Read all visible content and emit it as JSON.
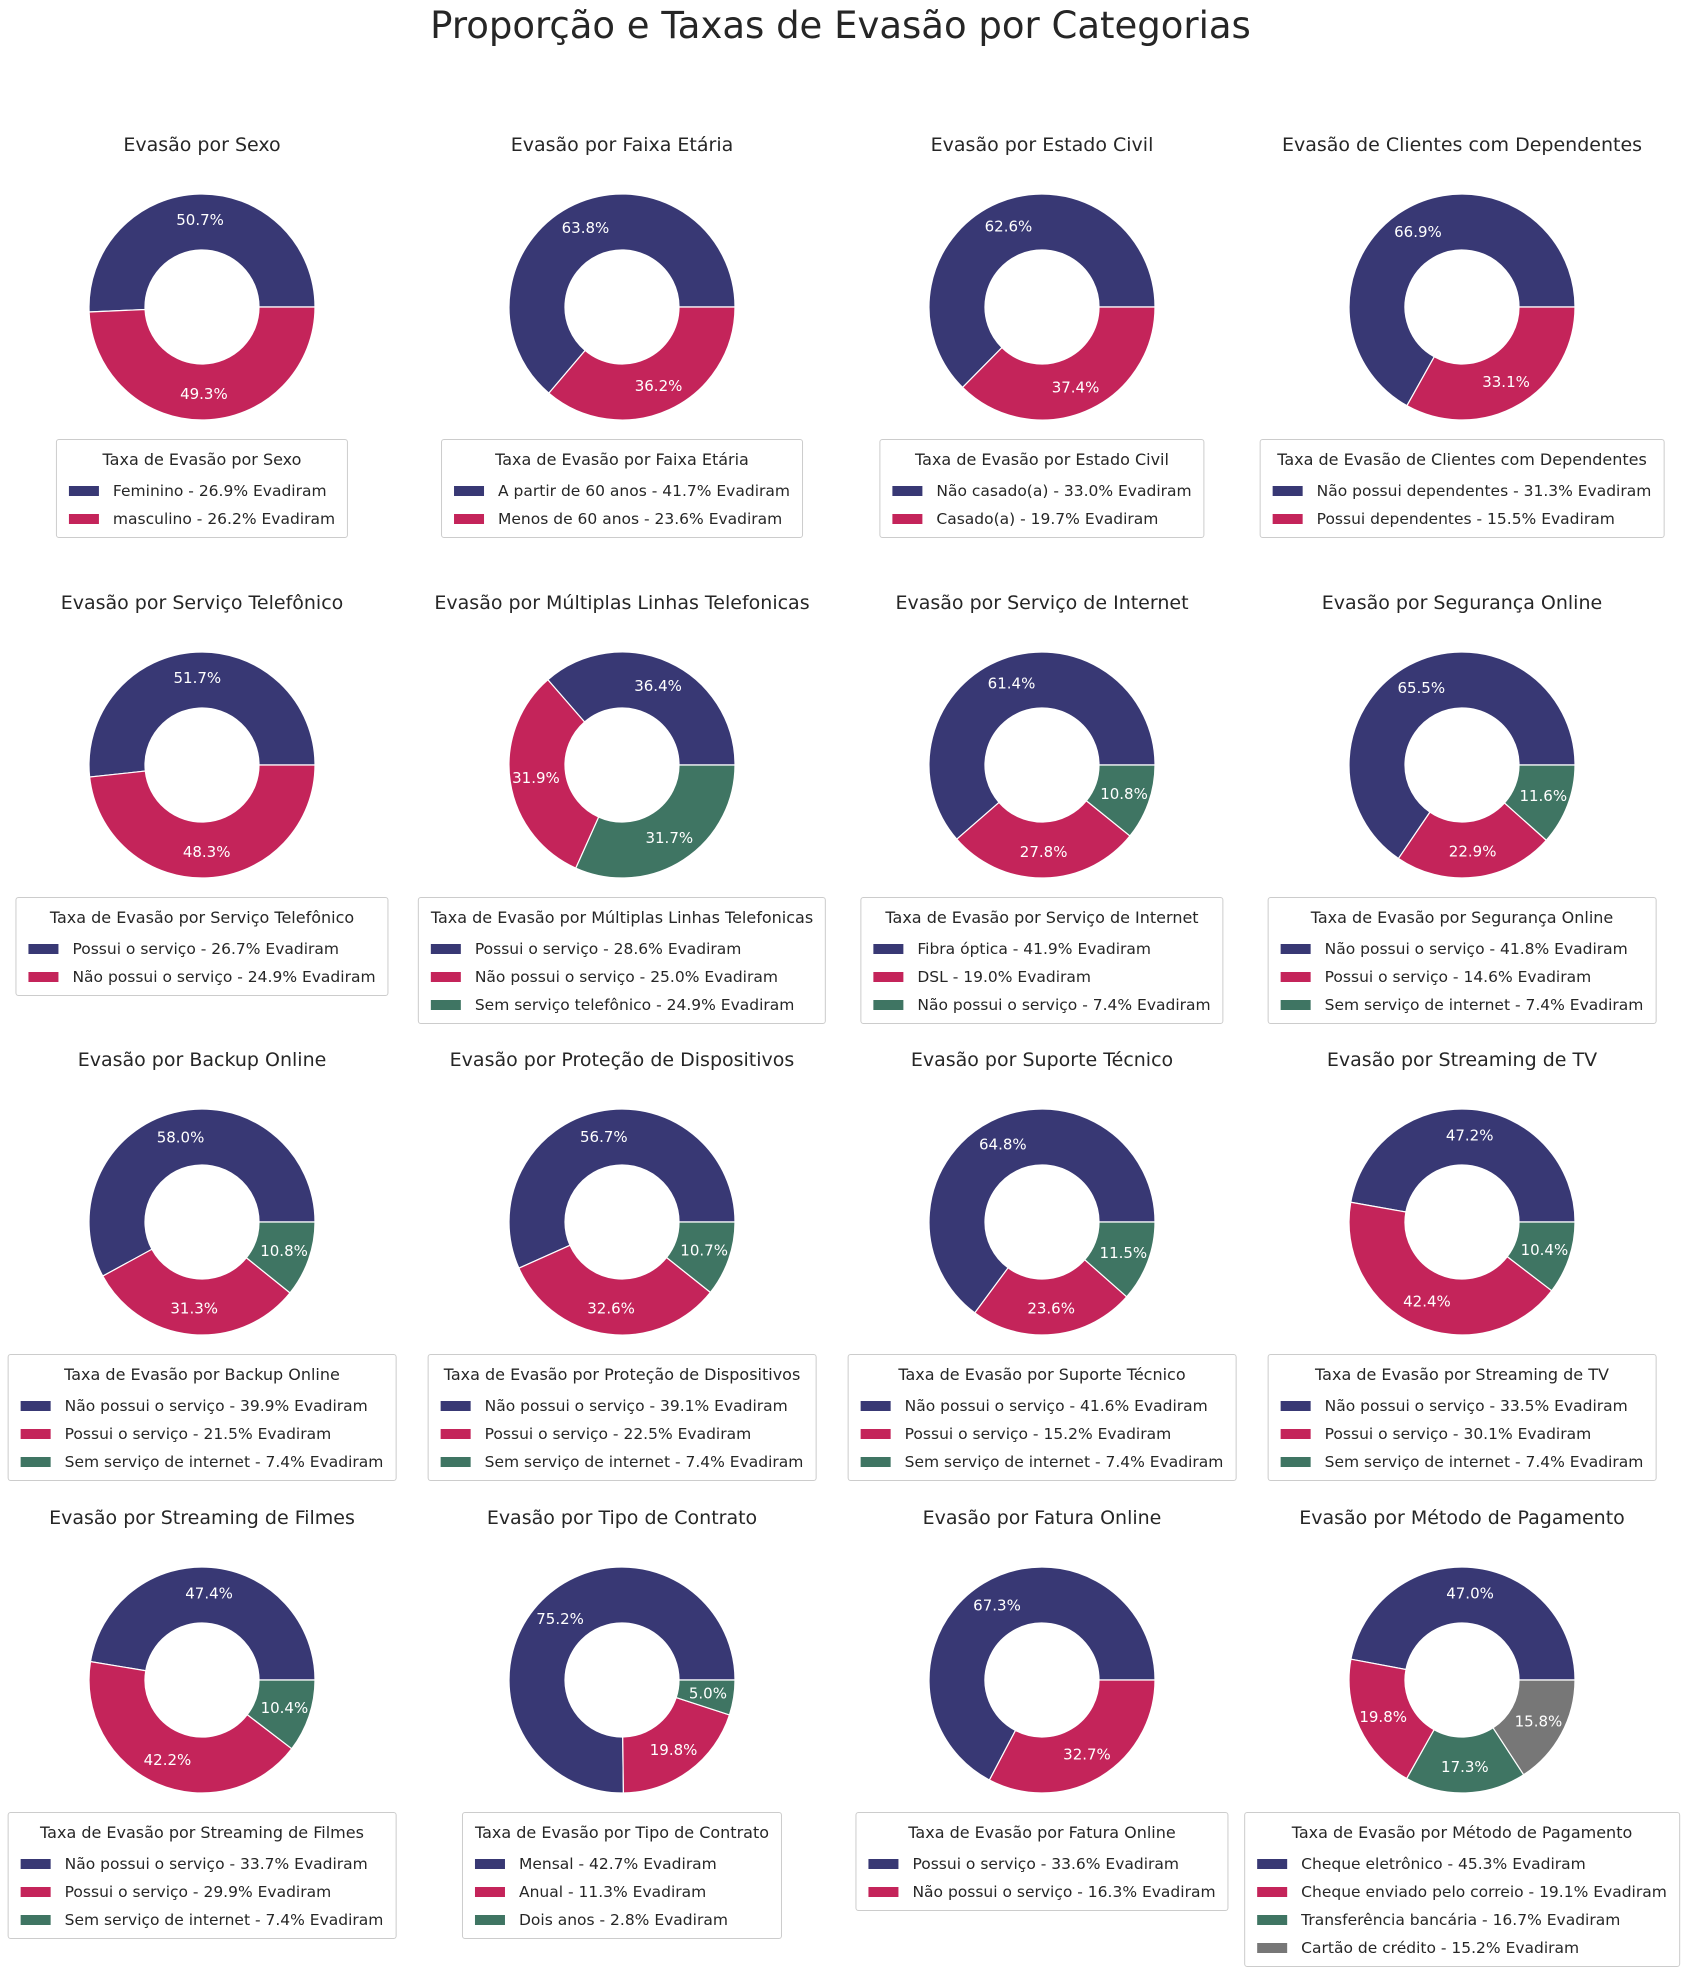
{
  "page": {
    "title": "Proporção e Taxas de Evasão por Categorias"
  },
  "colors": [
    "#383874",
    "#c4245a",
    "#3f7563",
    "#777777"
  ],
  "chart_data": [
    {
      "type": "pie",
      "title": "Evasão por Sexo",
      "slices": [
        50.7,
        49.3
      ],
      "legend_title": "Taxa de Evasão por Sexo",
      "legend": [
        "Feminino - 26.9% Evadiram",
        "masculino - 26.2% Evadiram"
      ]
    },
    {
      "type": "pie",
      "title": "Evasão por Faixa Etária",
      "slices": [
        63.8,
        36.2
      ],
      "legend_title": "Taxa de Evasão por Faixa Etária",
      "legend": [
        "A partir de 60 anos - 41.7% Evadiram",
        "Menos de 60 anos - 23.6% Evadiram"
      ]
    },
    {
      "type": "pie",
      "title": "Evasão por Estado Civil",
      "slices": [
        62.6,
        37.4
      ],
      "legend_title": "Taxa de Evasão por Estado Civil",
      "legend": [
        "Não casado(a) - 33.0% Evadiram",
        "Casado(a) - 19.7% Evadiram"
      ]
    },
    {
      "type": "pie",
      "title": "Evasão de Clientes com Dependentes",
      "slices": [
        66.9,
        33.1
      ],
      "legend_title": "Taxa de Evasão de Clientes com Dependentes",
      "legend": [
        "Não possui dependentes - 31.3% Evadiram",
        "Possui dependentes - 15.5% Evadiram"
      ]
    },
    {
      "type": "pie",
      "title": "Evasão por Serviço Telefônico",
      "slices": [
        51.7,
        48.3
      ],
      "legend_title": "Taxa de Evasão por Serviço Telefônico",
      "legend": [
        "Possui o serviço - 26.7% Evadiram",
        "Não possui o serviço - 24.9% Evadiram"
      ]
    },
    {
      "type": "pie",
      "title": "Evasão por Múltiplas Linhas Telefonicas",
      "slices": [
        36.4,
        31.9,
        31.7
      ],
      "legend_title": "Taxa de Evasão por Múltiplas Linhas Telefonicas",
      "legend": [
        "Possui o serviço - 28.6% Evadiram",
        "Não possui o serviço - 25.0% Evadiram",
        "Sem serviço telefônico - 24.9% Evadiram"
      ]
    },
    {
      "type": "pie",
      "title": "Evasão por Serviço de Internet",
      "slices": [
        61.4,
        27.8,
        10.8
      ],
      "legend_title": "Taxa de Evasão por Serviço de Internet",
      "legend": [
        "Fibra óptica - 41.9% Evadiram",
        "DSL - 19.0% Evadiram",
        "Não possui o serviço - 7.4% Evadiram"
      ]
    },
    {
      "type": "pie",
      "title": "Evasão por Segurança Online",
      "slices": [
        65.5,
        22.9,
        11.6
      ],
      "legend_title": "Taxa de Evasão por Segurança Online",
      "legend": [
        "Não possui o serviço - 41.8% Evadiram",
        "Possui o serviço - 14.6% Evadiram",
        "Sem serviço de internet - 7.4% Evadiram"
      ]
    },
    {
      "type": "pie",
      "title": "Evasão por Backup Online",
      "slices": [
        58.0,
        31.3,
        10.8
      ],
      "legend_title": "Taxa de Evasão por Backup Online",
      "legend": [
        "Não possui o serviço - 39.9% Evadiram",
        "Possui o serviço - 21.5% Evadiram",
        "Sem serviço de internet - 7.4% Evadiram"
      ]
    },
    {
      "type": "pie",
      "title": "Evasão por Proteção de Dispositivos",
      "slices": [
        56.7,
        32.6,
        10.7
      ],
      "legend_title": "Taxa de Evasão por Proteção de Dispositivos",
      "legend": [
        "Não possui o serviço - 39.1% Evadiram",
        "Possui o serviço - 22.5% Evadiram",
        "Sem serviço de internet - 7.4% Evadiram"
      ]
    },
    {
      "type": "pie",
      "title": "Evasão por Suporte Técnico",
      "slices": [
        64.8,
        23.6,
        11.5
      ],
      "legend_title": "Taxa de Evasão por Suporte Técnico",
      "legend": [
        "Não possui o serviço - 41.6% Evadiram",
        "Possui o serviço - 15.2% Evadiram",
        "Sem serviço de internet - 7.4% Evadiram"
      ]
    },
    {
      "type": "pie",
      "title": "Evasão por Streaming de TV",
      "slices": [
        47.2,
        42.4,
        10.4
      ],
      "legend_title": "Taxa de Evasão por Streaming de TV",
      "legend": [
        "Não possui o serviço - 33.5% Evadiram",
        "Possui o serviço - 30.1% Evadiram",
        "Sem serviço de internet - 7.4% Evadiram"
      ]
    },
    {
      "type": "pie",
      "title": "Evasão por Streaming de Filmes",
      "slices": [
        47.4,
        42.2,
        10.4
      ],
      "legend_title": "Taxa de Evasão por Streaming de Filmes",
      "legend": [
        "Não possui o serviço - 33.7% Evadiram",
        "Possui o serviço - 29.9% Evadiram",
        "Sem serviço de internet - 7.4% Evadiram"
      ]
    },
    {
      "type": "pie",
      "title": "Evasão por Tipo de Contrato",
      "slices": [
        75.2,
        19.8,
        5.0
      ],
      "legend_title": "Taxa de Evasão por Tipo de Contrato",
      "legend": [
        "Mensal - 42.7% Evadiram",
        "Anual - 11.3% Evadiram",
        "Dois anos - 2.8% Evadiram"
      ]
    },
    {
      "type": "pie",
      "title": "Evasão por Fatura Online",
      "slices": [
        67.3,
        32.7
      ],
      "legend_title": "Taxa de Evasão por Fatura Online",
      "legend": [
        "Possui o serviço - 33.6% Evadiram",
        "Não possui o serviço - 16.3% Evadiram"
      ]
    },
    {
      "type": "pie",
      "title": "Evasão por Método de Pagamento",
      "slices": [
        47.0,
        19.8,
        17.3,
        15.8
      ],
      "legend_title": "Taxa de Evasão por Método de Pagamento",
      "legend": [
        "Cheque eletrônico - 45.3% Evadiram",
        "Cheque enviado pelo correio - 19.1% Evadiram",
        "Transferência bancária - 16.7% Evadiram",
        "Cartão de crédito - 15.2% Evadiram"
      ]
    }
  ]
}
